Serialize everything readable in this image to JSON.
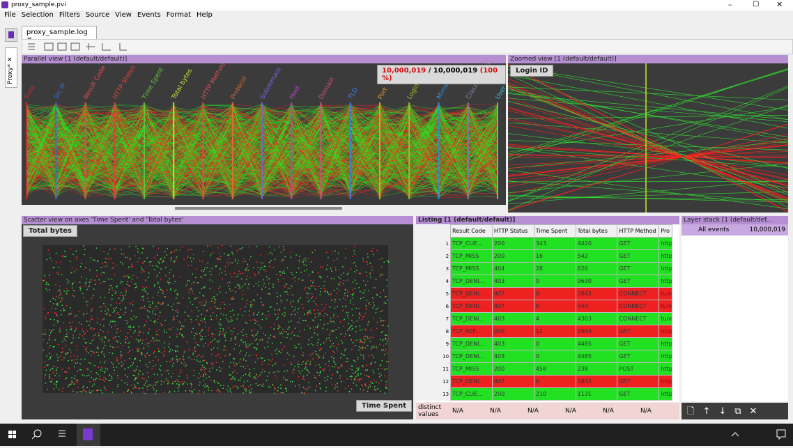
{
  "window": {
    "title": "proxy_sample.pvi"
  },
  "menu": [
    "File",
    "Selection",
    "Filters",
    "Source",
    "View",
    "Events",
    "Format",
    "Help"
  ],
  "side_tab": "Proxy*",
  "tab": "proxy_sample.log",
  "parallel_view": {
    "title": "Parallel view [1 (default/default)]",
    "count_selected": "10,000,019",
    "separator": "/",
    "count_total": "10,000,019",
    "percent": "(100 %)",
    "axes": [
      "Time",
      "Src IP",
      "Result Code",
      "HTTP Status",
      "Time Spent",
      "Total bytes",
      "HTTP Method",
      "Protocol",
      "Subdomain",
      "Host",
      "Domain",
      "TLD",
      "Port",
      "Login ID",
      "Mime Type",
      "Classification",
      "User"
    ]
  },
  "zoomed_view": {
    "title": "Zoomed view [1 (default/default)]",
    "axis": "Login ID"
  },
  "scatter_view": {
    "title": "Scatter view on axes 'Time Spent' and 'Total bytes'",
    "y_axis": "Total bytes",
    "x_axis": "Time Spent"
  },
  "listing": {
    "title": "Listing [1 (default/default)]",
    "columns": [
      "Result Code",
      "HTTP Status",
      "Time Spent",
      "Total bytes",
      "HTTP Method",
      "Pro"
    ],
    "rows": [
      {
        "index": 1,
        "cells": [
          "TCP_CLIE...",
          "200",
          "343",
          "4420",
          "GET",
          "http"
        ],
        "color": "#22e022"
      },
      {
        "index": 2,
        "cells": [
          "TCP_MISS",
          "200",
          "16",
          "542",
          "GET",
          "http"
        ],
        "color": "#22e022"
      },
      {
        "index": 3,
        "cells": [
          "TCP_MISS",
          "404",
          "28",
          "626",
          "GET",
          "http"
        ],
        "color": "#22e022"
      },
      {
        "index": 4,
        "cells": [
          "TCP_DENI...",
          "403",
          "0",
          "9630",
          "GET",
          "http"
        ],
        "color": "#22e022"
      },
      {
        "index": 5,
        "cells": [
          "TCP_DENI...",
          "407",
          "0",
          "3843",
          "CONNECT",
          "tunn"
        ],
        "color": "#ee2020"
      },
      {
        "index": 6,
        "cells": [
          "TCP_DENI...",
          "407",
          "0",
          "444",
          "CONNECT",
          "tunn"
        ],
        "color": "#ee2020"
      },
      {
        "index": 7,
        "cells": [
          "TCP_DENI...",
          "403",
          "4",
          "4303",
          "CONNECT",
          "tunn"
        ],
        "color": "#22e022"
      },
      {
        "index": 8,
        "cells": [
          "TCP_REF...",
          "200",
          "12",
          "2694",
          "GET",
          "http"
        ],
        "color": "#ee2020"
      },
      {
        "index": 9,
        "cells": [
          "TCP_DENI...",
          "403",
          "0",
          "4485",
          "GET",
          "http"
        ],
        "color": "#22e022"
      },
      {
        "index": 10,
        "cells": [
          "TCP_DENI...",
          "403",
          "0",
          "4485",
          "GET",
          "http"
        ],
        "color": "#22e022"
      },
      {
        "index": 11,
        "cells": [
          "TCP_MISS",
          "200",
          "458",
          "238",
          "POST",
          "http"
        ],
        "color": "#22e022"
      },
      {
        "index": 12,
        "cells": [
          "TCP_DENI...",
          "407",
          "0",
          "3843",
          "GET",
          "http"
        ],
        "color": "#ee2020"
      },
      {
        "index": 13,
        "cells": [
          "TCP_CLIE...",
          "200",
          "210",
          "1131",
          "GET",
          "http"
        ],
        "color": "#22e022"
      }
    ],
    "footer_label": "distinct values",
    "footer_values": [
      "N/A",
      "N/A",
      "N/A",
      "N/A",
      "N/A",
      "N/A"
    ]
  },
  "layer_stack": {
    "title": "Layer stack [1 (default/def...",
    "layers": [
      {
        "name": "All events",
        "count": "10,000,019"
      }
    ]
  }
}
